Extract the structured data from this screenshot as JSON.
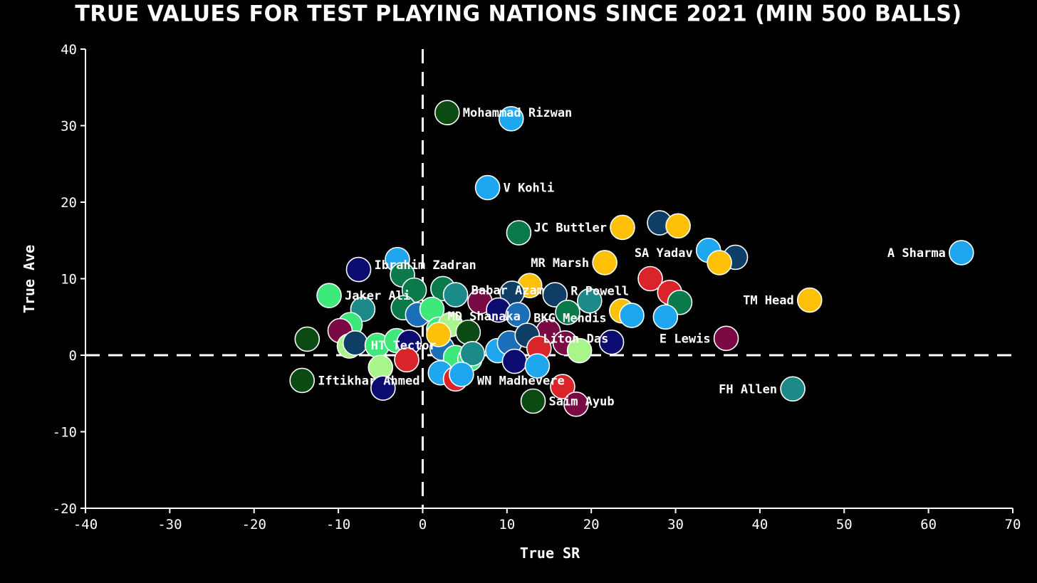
{
  "chart_data": {
    "type": "scatter",
    "title": "TRUE VALUES FOR TEST PLAYING NATIONS SINCE 2021 (MIN 500 BALLS)",
    "xlabel": "True SR",
    "ylabel": "True Ave",
    "xlim": [
      -40,
      70
    ],
    "ylim": [
      -20,
      40
    ],
    "xticks": [
      -40,
      -30,
      -20,
      -10,
      0,
      10,
      20,
      30,
      40,
      50,
      60,
      70
    ],
    "yticks": [
      -20,
      -10,
      0,
      10,
      20,
      30,
      40
    ],
    "reference_lines": {
      "x": 0,
      "y": 0,
      "style": "dashed"
    },
    "points": [
      {
        "x": 2.9,
        "y": 31.7,
        "color": "#0b4a12",
        "label": "Mohammad Rizwan"
      },
      {
        "x": 10.5,
        "y": 30.9,
        "color": "#1ea7ef"
      },
      {
        "x": 7.7,
        "y": 21.9,
        "color": "#1ea7ef",
        "label": "V Kohli"
      },
      {
        "x": 11.4,
        "y": 16.0,
        "color": "#0b7a4a"
      },
      {
        "x": 23.7,
        "y": 16.7,
        "color": "#fec107",
        "label": "JC Buttler",
        "label_side": "left"
      },
      {
        "x": 28.1,
        "y": 17.3,
        "color": "#0e3d66"
      },
      {
        "x": 30.3,
        "y": 16.9,
        "color": "#fec107"
      },
      {
        "x": 63.9,
        "y": 13.4,
        "color": "#1ea7ef",
        "label": "A Sharma",
        "label_side": "left"
      },
      {
        "x": 33.9,
        "y": 13.7,
        "color": "#1ea7ef",
        "label": "SA Yadav",
        "label_side": "left",
        "label_dy": -0.3
      },
      {
        "x": 37.1,
        "y": 12.8,
        "color": "#0e3d66"
      },
      {
        "x": 35.2,
        "y": 12.1,
        "color": "#fec107"
      },
      {
        "x": 21.6,
        "y": 12.1,
        "color": "#fec107",
        "label": "MR Marsh",
        "label_side": "left"
      },
      {
        "x": -3.0,
        "y": 12.5,
        "color": "#1ea7ef"
      },
      {
        "x": -7.6,
        "y": 11.2,
        "color": "#0b0b70",
        "label": "Ibrahim Zadran",
        "label_dy": 0.6
      },
      {
        "x": -2.4,
        "y": 10.5,
        "color": "#0b7a4a"
      },
      {
        "x": 12.7,
        "y": 9.1,
        "color": "#fec107"
      },
      {
        "x": 27.0,
        "y": 10.0,
        "color": "#d9252a"
      },
      {
        "x": 29.3,
        "y": 8.2,
        "color": "#d9252a"
      },
      {
        "x": 30.5,
        "y": 6.9,
        "color": "#0b7a4a"
      },
      {
        "x": 45.9,
        "y": 7.2,
        "color": "#fec107",
        "label": "TM Head",
        "label_side": "left"
      },
      {
        "x": -11.1,
        "y": 7.8,
        "color": "#3ee87a",
        "label": "Jaker Ali"
      },
      {
        "x": -1.0,
        "y": 8.5,
        "color": "#0b7a4a"
      },
      {
        "x": 2.4,
        "y": 8.7,
        "color": "#0b7a4a"
      },
      {
        "x": 3.9,
        "y": 7.9,
        "color": "#1d8a8a",
        "label": "Babar Azam",
        "label_dy": 0.6
      },
      {
        "x": 6.8,
        "y": 7.0,
        "color": "#7a0a44"
      },
      {
        "x": 10.6,
        "y": 8.1,
        "color": "#0e3d66"
      },
      {
        "x": 15.7,
        "y": 7.9,
        "color": "#0e3d66",
        "label": "R Powell",
        "label_dy": 0.5
      },
      {
        "x": 19.8,
        "y": 7.1,
        "color": "#1d8a8a"
      },
      {
        "x": -7.1,
        "y": 6.0,
        "color": "#1d8a8a"
      },
      {
        "x": -2.3,
        "y": 6.2,
        "color": "#0b7a4a"
      },
      {
        "x": -0.6,
        "y": 5.3,
        "color": "#1a6fb8"
      },
      {
        "x": 1.1,
        "y": 6.0,
        "color": "#3ee87a",
        "label": "MD Shanaka",
        "label_dy": -0.9
      },
      {
        "x": 9.0,
        "y": 5.9,
        "color": "#0b0b70"
      },
      {
        "x": 11.3,
        "y": 5.3,
        "color": "#1a6fb8",
        "label": "BKG Mendis",
        "label_dy": -0.4
      },
      {
        "x": 17.2,
        "y": 5.6,
        "color": "#0b7a4a"
      },
      {
        "x": 23.6,
        "y": 5.8,
        "color": "#fec107"
      },
      {
        "x": 24.8,
        "y": 5.2,
        "color": "#1ea7ef"
      },
      {
        "x": 28.8,
        "y": 5.0,
        "color": "#1ea7ef"
      },
      {
        "x": -8.6,
        "y": 4.0,
        "color": "#3ee87a"
      },
      {
        "x": 1.9,
        "y": 3.4,
        "color": "#3ee87a"
      },
      {
        "x": 3.3,
        "y": 4.0,
        "color": "#a8f58a"
      },
      {
        "x": 5.4,
        "y": 3.0,
        "color": "#0b4a12"
      },
      {
        "x": 14.9,
        "y": 3.1,
        "color": "#7a0a44"
      },
      {
        "x": 36.0,
        "y": 2.2,
        "color": "#7a0a44",
        "label": "E Lewis",
        "label_side": "left"
      },
      {
        "x": -13.7,
        "y": 2.1,
        "color": "#0b4a12"
      },
      {
        "x": -9.8,
        "y": 3.2,
        "color": "#7a0a44"
      },
      {
        "x": -8.7,
        "y": 1.2,
        "color": "#a8f58a"
      },
      {
        "x": -8.0,
        "y": 1.6,
        "color": "#0e3d66",
        "label": "HT Tector",
        "label_dy": -0.3
      },
      {
        "x": -5.4,
        "y": 1.3,
        "color": "#3ee87a"
      },
      {
        "x": -3.1,
        "y": 1.9,
        "color": "#3ee87a"
      },
      {
        "x": -1.6,
        "y": 1.7,
        "color": "#0b0b70"
      },
      {
        "x": 2.3,
        "y": 0.9,
        "color": "#1a6fb8"
      },
      {
        "x": 1.9,
        "y": 2.7,
        "color": "#fec107"
      },
      {
        "x": 3.9,
        "y": -0.3,
        "color": "#3ee87a"
      },
      {
        "x": 5.6,
        "y": -0.5,
        "color": "#3ee87a"
      },
      {
        "x": 5.9,
        "y": 0.2,
        "color": "#1d8a8a"
      },
      {
        "x": 8.9,
        "y": 0.6,
        "color": "#1ea7ef"
      },
      {
        "x": 10.3,
        "y": 1.6,
        "color": "#1a6fb8"
      },
      {
        "x": 12.4,
        "y": 2.6,
        "color": "#0e3d66",
        "label": "Liton Das",
        "label_dy": -0.4
      },
      {
        "x": 13.8,
        "y": 0.9,
        "color": "#d9252a"
      },
      {
        "x": 16.9,
        "y": 1.6,
        "color": "#7a0a44"
      },
      {
        "x": 18.6,
        "y": 0.6,
        "color": "#a8f58a"
      },
      {
        "x": 22.4,
        "y": 1.7,
        "color": "#0b0b70"
      },
      {
        "x": -5.0,
        "y": -1.6,
        "color": "#a8f58a"
      },
      {
        "x": -1.9,
        "y": -0.6,
        "color": "#d9252a"
      },
      {
        "x": 10.9,
        "y": -0.8,
        "color": "#0b0b70"
      },
      {
        "x": 13.6,
        "y": -1.4,
        "color": "#1ea7ef"
      },
      {
        "x": 2.1,
        "y": -2.3,
        "color": "#1ea7ef"
      },
      {
        "x": 3.9,
        "y": -3.1,
        "color": "#d9252a"
      },
      {
        "x": 4.6,
        "y": -2.5,
        "color": "#1ea7ef",
        "label": "WN Madhevere",
        "label_dy": -0.8
      },
      {
        "x": 16.6,
        "y": -4.1,
        "color": "#d9252a"
      },
      {
        "x": -14.3,
        "y": -3.3,
        "color": "#0b4a12",
        "label": "Iftikhar Ahmed",
        "label_dy": 0.0
      },
      {
        "x": -4.7,
        "y": -4.3,
        "color": "#0b0b70"
      },
      {
        "x": 13.1,
        "y": -6.0,
        "color": "#0b4a12",
        "label": "Saim Ayub"
      },
      {
        "x": 18.2,
        "y": -6.4,
        "color": "#7a0a44"
      },
      {
        "x": 43.9,
        "y": -4.4,
        "color": "#1d8a8a",
        "label": "FH Allen",
        "label_side": "left"
      }
    ]
  }
}
